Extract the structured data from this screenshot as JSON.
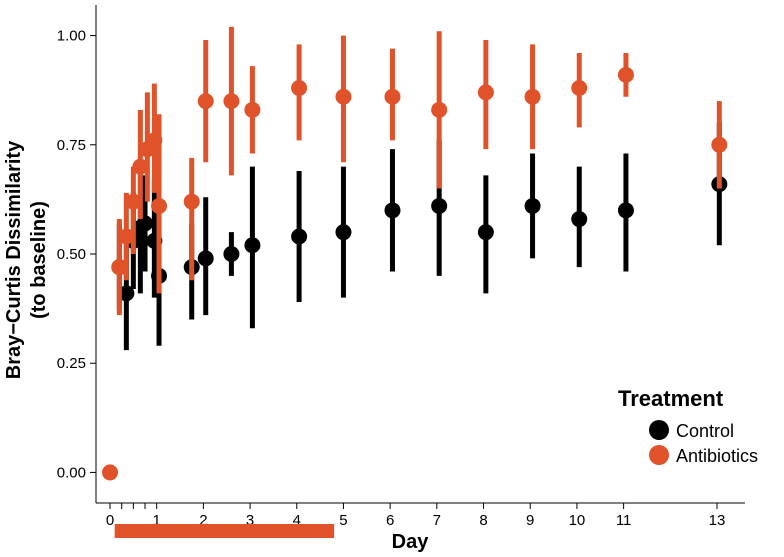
{
  "chart_data": {
    "type": "scatter",
    "xlabel": "Day",
    "ylabel_lines": [
      "Bray−Curtis Dissimilarity",
      "(to baseline)"
    ],
    "xlim": [
      -0.3,
      13.6
    ],
    "ylim": [
      -0.07,
      1.07
    ],
    "x_ticks": [
      0,
      0.25,
      0.5,
      0.75,
      1,
      2,
      3,
      4,
      5,
      6,
      7,
      8,
      9,
      10,
      11,
      13
    ],
    "x_tick_labels": [
      "0",
      "",
      "",
      "",
      "1",
      "2",
      "3",
      "4",
      "5",
      "6",
      "7",
      "8",
      "9",
      "10",
      "11",
      "13"
    ],
    "y_ticks": [
      0,
      0.25,
      0.5,
      0.75,
      1.0
    ],
    "y_tick_labels": [
      "0.00",
      "0.25",
      "0.50",
      "0.75",
      "1.00"
    ],
    "grid": false,
    "legend": {
      "title": "Treatment",
      "position": "right"
    },
    "treatment_period": {
      "start": 0.1,
      "end": 4.8,
      "color": "#e0532a"
    },
    "series": [
      {
        "name": "Control",
        "color": "#000000",
        "points": [
          {
            "x": 0.2,
            "y": 0.47,
            "lo": 0.37,
            "hi": 0.57
          },
          {
            "x": 0.35,
            "y": 0.41,
            "lo": 0.28,
            "hi": 0.53
          },
          {
            "x": 0.5,
            "y": 0.53,
            "lo": 0.42,
            "hi": 0.64
          },
          {
            "x": 0.65,
            "y": 0.56,
            "lo": 0.41,
            "hi": 0.7
          },
          {
            "x": 0.75,
            "y": 0.57,
            "lo": 0.46,
            "hi": 0.68
          },
          {
            "x": 0.95,
            "y": 0.53,
            "lo": 0.4,
            "hi": 0.67
          },
          {
            "x": 1.05,
            "y": 0.45,
            "lo": 0.29,
            "hi": 0.6
          },
          {
            "x": 1.75,
            "y": 0.47,
            "lo": 0.35,
            "hi": 0.57
          },
          {
            "x": 2.05,
            "y": 0.49,
            "lo": 0.36,
            "hi": 0.63
          },
          {
            "x": 2.6,
            "y": 0.5,
            "lo": 0.45,
            "hi": 0.55
          },
          {
            "x": 3.05,
            "y": 0.52,
            "lo": 0.33,
            "hi": 0.7
          },
          {
            "x": 4.05,
            "y": 0.54,
            "lo": 0.39,
            "hi": 0.69
          },
          {
            "x": 5.0,
            "y": 0.55,
            "lo": 0.4,
            "hi": 0.7
          },
          {
            "x": 6.05,
            "y": 0.6,
            "lo": 0.46,
            "hi": 0.74
          },
          {
            "x": 7.05,
            "y": 0.61,
            "lo": 0.45,
            "hi": 0.76
          },
          {
            "x": 8.05,
            "y": 0.55,
            "lo": 0.41,
            "hi": 0.68
          },
          {
            "x": 9.05,
            "y": 0.61,
            "lo": 0.49,
            "hi": 0.73
          },
          {
            "x": 10.05,
            "y": 0.58,
            "lo": 0.47,
            "hi": 0.7
          },
          {
            "x": 11.05,
            "y": 0.6,
            "lo": 0.46,
            "hi": 0.73
          },
          {
            "x": 13.05,
            "y": 0.66,
            "lo": 0.52,
            "hi": 0.8
          }
        ]
      },
      {
        "name": "Antibiotics",
        "color": "#e0532a",
        "points": [
          {
            "x": 0.0,
            "y": 0.0,
            "lo": 0.0,
            "hi": 0.0
          },
          {
            "x": 0.2,
            "y": 0.47,
            "lo": 0.36,
            "hi": 0.58
          },
          {
            "x": 0.35,
            "y": 0.54,
            "lo": 0.44,
            "hi": 0.64
          },
          {
            "x": 0.5,
            "y": 0.62,
            "lo": 0.5,
            "hi": 0.7
          },
          {
            "x": 0.65,
            "y": 0.7,
            "lo": 0.58,
            "hi": 0.83
          },
          {
            "x": 0.8,
            "y": 0.74,
            "lo": 0.62,
            "hi": 0.87
          },
          {
            "x": 0.95,
            "y": 0.76,
            "lo": 0.64,
            "hi": 0.89
          },
          {
            "x": 1.05,
            "y": 0.61,
            "lo": 0.41,
            "hi": 0.82
          },
          {
            "x": 1.75,
            "y": 0.62,
            "lo": 0.44,
            "hi": 0.72
          },
          {
            "x": 2.05,
            "y": 0.85,
            "lo": 0.71,
            "hi": 0.99
          },
          {
            "x": 2.6,
            "y": 0.85,
            "lo": 0.68,
            "hi": 1.02
          },
          {
            "x": 3.05,
            "y": 0.83,
            "lo": 0.73,
            "hi": 0.93
          },
          {
            "x": 4.05,
            "y": 0.88,
            "lo": 0.76,
            "hi": 0.98
          },
          {
            "x": 5.0,
            "y": 0.86,
            "lo": 0.71,
            "hi": 1.0
          },
          {
            "x": 6.05,
            "y": 0.86,
            "lo": 0.76,
            "hi": 0.97
          },
          {
            "x": 7.05,
            "y": 0.83,
            "lo": 0.65,
            "hi": 1.01
          },
          {
            "x": 8.05,
            "y": 0.87,
            "lo": 0.74,
            "hi": 0.99
          },
          {
            "x": 9.05,
            "y": 0.86,
            "lo": 0.74,
            "hi": 0.98
          },
          {
            "x": 10.05,
            "y": 0.88,
            "lo": 0.79,
            "hi": 0.96
          },
          {
            "x": 11.05,
            "y": 0.91,
            "lo": 0.86,
            "hi": 0.96
          },
          {
            "x": 13.05,
            "y": 0.75,
            "lo": 0.65,
            "hi": 0.85
          }
        ]
      }
    ]
  }
}
